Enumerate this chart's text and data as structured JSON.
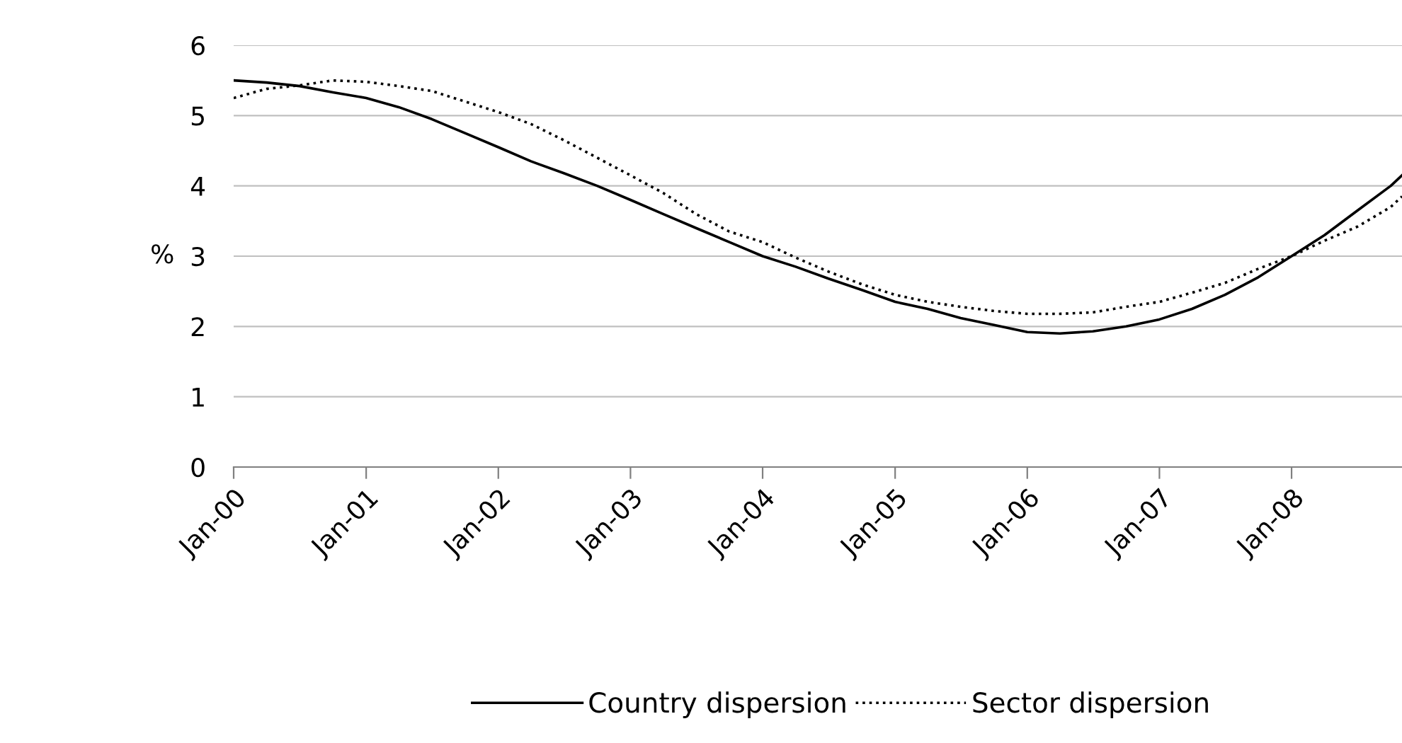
{
  "chart_data": {
    "type": "line",
    "ylabel": "%",
    "x": [
      "2000-01",
      "2000-04",
      "2000-07",
      "2000-10",
      "2001-01",
      "2001-04",
      "2001-07",
      "2001-10",
      "2002-01",
      "2002-04",
      "2002-07",
      "2002-10",
      "2003-01",
      "2003-04",
      "2003-07",
      "2003-10",
      "2004-01",
      "2004-04",
      "2004-07",
      "2004-10",
      "2005-01",
      "2005-04",
      "2005-07",
      "2005-10",
      "2006-01",
      "2006-04",
      "2006-07",
      "2006-10",
      "2007-01",
      "2007-04",
      "2007-07",
      "2007-10",
      "2008-01",
      "2008-04",
      "2008-07",
      "2008-10",
      "2008-11"
    ],
    "series": [
      {
        "name": "Country dispersion",
        "color": "#000000",
        "line_style": "solid",
        "values": [
          5.5,
          5.47,
          5.42,
          5.33,
          5.25,
          5.12,
          4.95,
          4.75,
          4.55,
          4.35,
          4.18,
          4.0,
          3.8,
          3.6,
          3.4,
          3.2,
          3.0,
          2.85,
          2.68,
          2.52,
          2.35,
          2.25,
          2.12,
          2.02,
          1.92,
          1.9,
          1.93,
          2.0,
          2.1,
          2.25,
          2.45,
          2.7,
          3.0,
          3.3,
          3.65,
          4.0,
          4.15
        ]
      },
      {
        "name": "Sector dispersion",
        "color": "#000000",
        "line_style": "dotted",
        "values": [
          5.25,
          5.38,
          5.43,
          5.5,
          5.48,
          5.42,
          5.35,
          5.2,
          5.05,
          4.88,
          4.65,
          4.4,
          4.15,
          3.9,
          3.6,
          3.35,
          3.2,
          2.98,
          2.78,
          2.6,
          2.45,
          2.35,
          2.28,
          2.22,
          2.18,
          2.18,
          2.2,
          2.28,
          2.35,
          2.48,
          2.62,
          2.82,
          3.0,
          3.22,
          3.42,
          3.7,
          3.85
        ]
      }
    ],
    "xlim": [
      "2000-01",
      "2008-11"
    ],
    "xticks": [
      {
        "value": "2000-01",
        "label": "Jan-00"
      },
      {
        "value": "2001-01",
        "label": "Jan-01"
      },
      {
        "value": "2002-01",
        "label": "Jan-02"
      },
      {
        "value": "2003-01",
        "label": "Jan-03"
      },
      {
        "value": "2004-01",
        "label": "Jan-04"
      },
      {
        "value": "2005-01",
        "label": "Jan-05"
      },
      {
        "value": "2006-01",
        "label": "Jan-06"
      },
      {
        "value": "2007-01",
        "label": "Jan-07"
      },
      {
        "value": "2008-01",
        "label": "Jan-08"
      }
    ],
    "ylim": [
      0,
      6
    ],
    "yticks": [
      0,
      1,
      2,
      3,
      4,
      5,
      6
    ],
    "grid": "y",
    "legend": "bottom",
    "marker": "none"
  }
}
